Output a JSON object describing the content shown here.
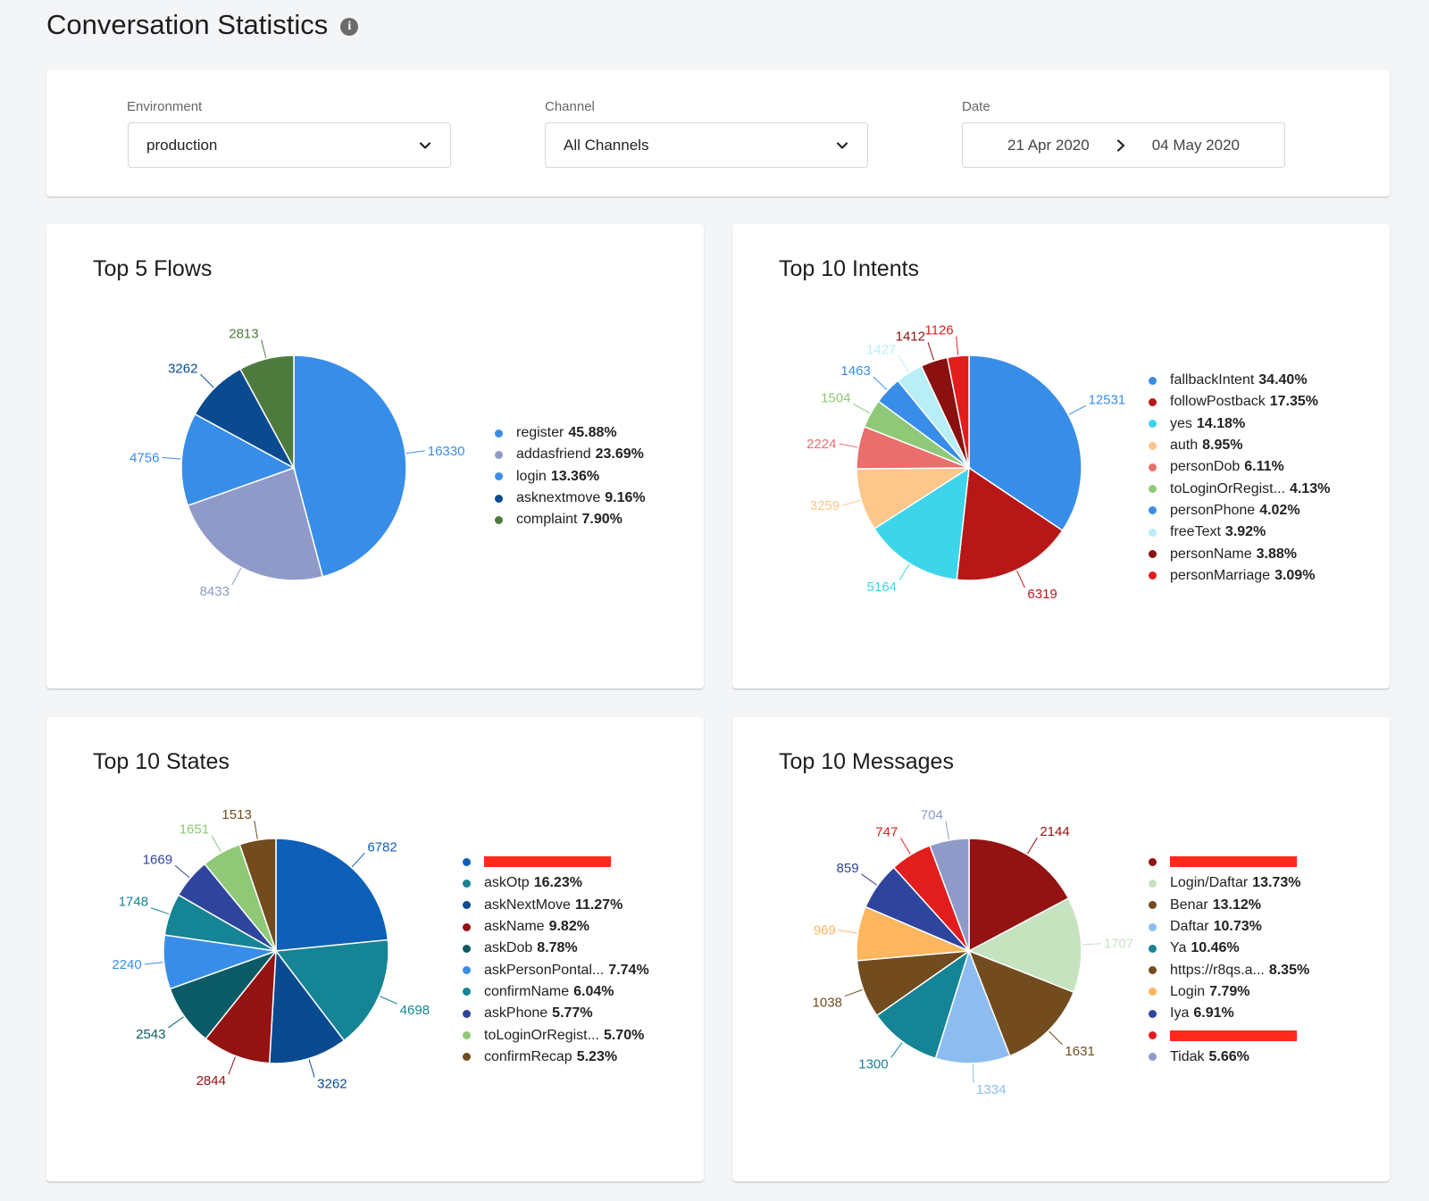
{
  "page": {
    "title": "Conversation Statistics",
    "info_icon": "info-icon"
  },
  "filters": {
    "environment": {
      "label": "Environment",
      "value": "production"
    },
    "channel": {
      "label": "Channel",
      "value": "All Channels"
    },
    "date": {
      "label": "Date",
      "start": "21 Apr 2020",
      "end": "04 May 2020"
    }
  },
  "charts": [
    {
      "title": "Top 5 Flows",
      "chart_data": {
        "type": "pie",
        "title": "Top 5 Flows",
        "slices": [
          {
            "name": "register",
            "value": 16330,
            "percent": "45.88%",
            "color": "#388de8"
          },
          {
            "name": "addasfriend",
            "value": 8433,
            "percent": "23.69%",
            "color": "#8f9ac9"
          },
          {
            "name": "login",
            "value": 4756,
            "percent": "13.36%",
            "color": "#388de8"
          },
          {
            "name": "asknextmove",
            "value": 3262,
            "percent": "9.16%",
            "color": "#0a4a90"
          },
          {
            "name": "complaint",
            "value": 2813,
            "percent": "7.90%",
            "color": "#4f7a3e"
          }
        ]
      }
    },
    {
      "title": "Top 10 Intents",
      "chart_data": {
        "type": "pie",
        "title": "Top 10 Intents",
        "slices": [
          {
            "name": "fallbackIntent",
            "value": 12531,
            "percent": "34.40%",
            "color": "#388de8"
          },
          {
            "name": "followPostback",
            "value": 6319,
            "percent": "17.35%",
            "color": "#b81717"
          },
          {
            "name": "yes",
            "value": 5164,
            "percent": "14.18%",
            "color": "#3dd5ea"
          },
          {
            "name": "auth",
            "value": 3259,
            "percent": "8.95%",
            "color": "#fdc68a"
          },
          {
            "name": "personDob",
            "value": 2224,
            "percent": "6.11%",
            "color": "#ea6e6b"
          },
          {
            "name": "toLoginOrRegist...",
            "value": 1504,
            "percent": "4.13%",
            "color": "#8fc978"
          },
          {
            "name": "personPhone",
            "value": 1463,
            "percent": "4.02%",
            "color": "#388de8"
          },
          {
            "name": "freeText",
            "value": 1427,
            "percent": "3.92%",
            "color": "#b8eef6"
          },
          {
            "name": "personName",
            "value": 1412,
            "percent": "3.88%",
            "color": "#8b1010"
          },
          {
            "name": "personMarriage",
            "value": 1126,
            "percent": "3.09%",
            "color": "#e21d1d"
          }
        ]
      }
    },
    {
      "title": "Top 10 States",
      "chart_data": {
        "type": "pie",
        "title": "Top 10 States",
        "slices": [
          {
            "name": "",
            "value": 6782,
            "percent": "",
            "redacted": true,
            "color": "#0d5fb8"
          },
          {
            "name": "askOtp",
            "value": 4698,
            "percent": "16.23%",
            "color": "#158494"
          },
          {
            "name": "askNextMove",
            "value": 3262,
            "percent": "11.27%",
            "color": "#0a4a90"
          },
          {
            "name": "askName",
            "value": 2844,
            "percent": "9.82%",
            "color": "#931212"
          },
          {
            "name": "askDob",
            "value": 2543,
            "percent": "8.78%",
            "color": "#0b5b66"
          },
          {
            "name": "askPersonPontal...",
            "value": 2240,
            "percent": "7.74%",
            "color": "#388de8"
          },
          {
            "name": "confirmName",
            "value": 1748,
            "percent": "6.04%",
            "color": "#158494"
          },
          {
            "name": "askPhone",
            "value": 1669,
            "percent": "5.77%",
            "color": "#2f449c"
          },
          {
            "name": "toLoginOrRegist...",
            "value": 1651,
            "percent": "5.70%",
            "color": "#8fc978"
          },
          {
            "name": "confirmRecap",
            "value": 1513,
            "percent": "5.23%",
            "color": "#724b1e"
          }
        ]
      }
    },
    {
      "title": "Top 10 Messages",
      "chart_data": {
        "type": "pie",
        "title": "Top 10 Messages",
        "slices": [
          {
            "name": "",
            "value": 2144,
            "percent": "",
            "redacted": true,
            "color": "#931212"
          },
          {
            "name": "Login/Daftar",
            "value": 1707,
            "percent": "13.73%",
            "color": "#c6e3c0"
          },
          {
            "name": "Benar",
            "value": 1631,
            "percent": "13.12%",
            "color": "#724b1e"
          },
          {
            "name": "Daftar",
            "value": 1334,
            "percent": "10.73%",
            "color": "#8dbdf0"
          },
          {
            "name": "Ya",
            "value": 1300,
            "percent": "10.46%",
            "color": "#158494"
          },
          {
            "name": "https://r8qs.a...",
            "value": 1038,
            "percent": "8.35%",
            "color": "#724b1e"
          },
          {
            "name": "Login",
            "value": 969,
            "percent": "7.79%",
            "color": "#fdb55e"
          },
          {
            "name": "Iya",
            "value": 859,
            "percent": "6.91%",
            "color": "#2f449c"
          },
          {
            "name": "",
            "value": 747,
            "percent": "",
            "redacted": true,
            "color": "#e21d1d"
          },
          {
            "name": "Tidak",
            "value": 704,
            "percent": "5.66%",
            "color": "#8f9ac9"
          }
        ]
      }
    }
  ]
}
